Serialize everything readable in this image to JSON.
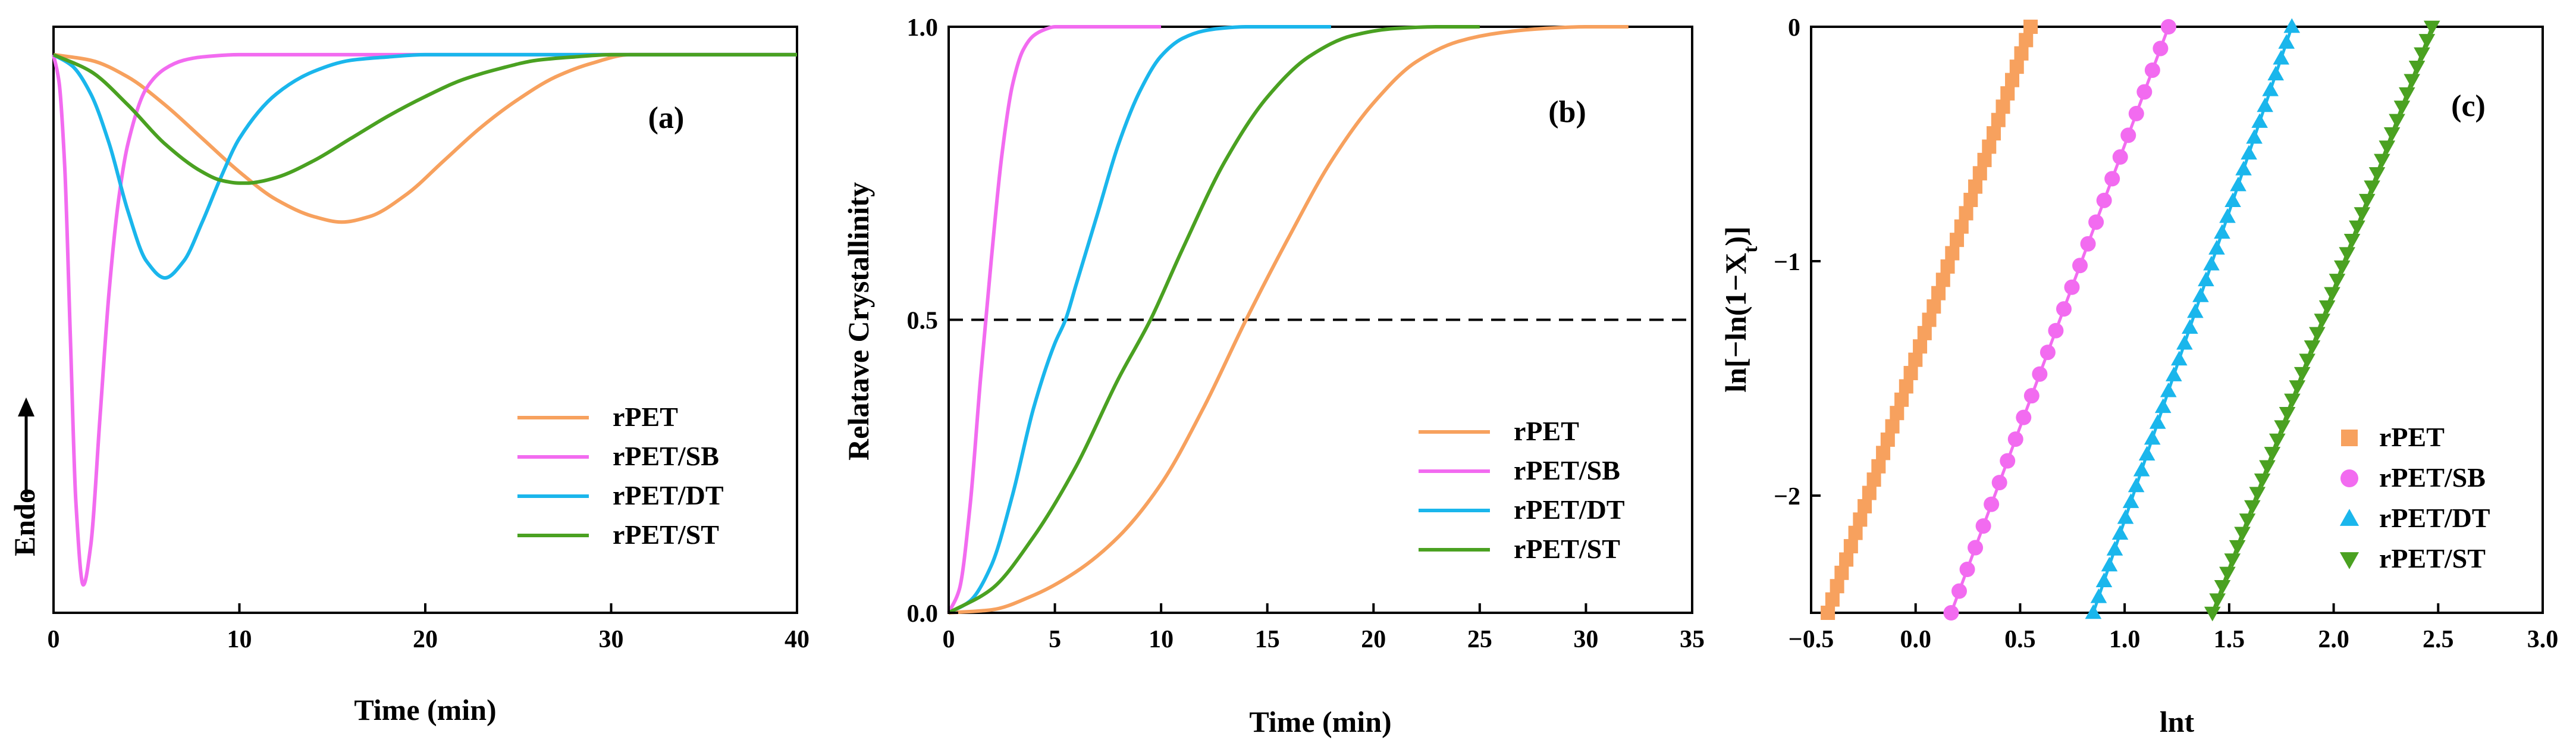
{
  "figure": {
    "panels": [
      {
        "id": "a",
        "letter": "(a)",
        "type": "line",
        "xlabel": "Time (min)",
        "ylabel": "Endo",
        "xlim": [
          0,
          40
        ],
        "xticks": [
          0,
          10,
          20,
          30,
          40
        ],
        "ylim": [
          -1.0,
          0.05
        ],
        "yticks": [],
        "legend": [
          "rPET",
          "rPET/SB",
          "rPET/DT",
          "rPET/ST"
        ]
      },
      {
        "id": "b",
        "letter": "(b)",
        "type": "line",
        "xlabel": "Time (min)",
        "ylabel": "Relatave Crystallinity",
        "xlim": [
          0,
          35
        ],
        "xticks": [
          0,
          5,
          10,
          15,
          20,
          25,
          30,
          35
        ],
        "ylim": [
          0,
          1
        ],
        "yticks": [
          0.0,
          0.5,
          1.0
        ],
        "ytick_labels": [
          "0.0",
          "0.5",
          "1.0"
        ],
        "reference_line_y": 0.5,
        "legend": [
          "rPET",
          "rPET/SB",
          "rPET/DT",
          "rPET/ST"
        ]
      },
      {
        "id": "c",
        "letter": "(c)",
        "type": "scatter",
        "xlabel": "lnt",
        "ylabel": "ln[−ln(1−Xt)]",
        "ylabel_parts": [
          "ln[−ln(1−X",
          "t",
          ")]"
        ],
        "xlim": [
          -0.5,
          3.0
        ],
        "xticks": [
          -0.5,
          0.0,
          0.5,
          1.0,
          1.5,
          2.0,
          2.5,
          3.0
        ],
        "xtick_labels": [
          "−0.5",
          "0.0",
          "0.5",
          "1.0",
          "1.5",
          "2.0",
          "2.5",
          "3.0"
        ],
        "ylim": [
          -2.5,
          0
        ],
        "yticks": [
          -2,
          -1,
          0
        ],
        "ytick_labels": [
          "−2",
          "−1",
          "0"
        ],
        "legend": [
          "rPET",
          "rPET/SB",
          "rPET/DT",
          "rPET/ST"
        ]
      }
    ]
  },
  "chart_data": [
    {
      "type": "line",
      "panel": "a",
      "title": "",
      "xlabel": "Time (min)",
      "ylabel": "Endo",
      "xlim": [
        0,
        40
      ],
      "series": [
        {
          "name": "rPET",
          "color": "#f7a15e",
          "x": [
            0,
            2,
            4,
            6,
            8,
            10,
            12,
            14,
            15.5,
            17,
            19,
            21,
            23,
            25,
            27,
            29,
            31,
            35,
            40
          ],
          "y": [
            0,
            -0.01,
            -0.04,
            -0.09,
            -0.15,
            -0.21,
            -0.26,
            -0.29,
            -0.3,
            -0.29,
            -0.25,
            -0.19,
            -0.13,
            -0.08,
            -0.04,
            -0.015,
            0,
            0,
            0
          ]
        },
        {
          "name": "rPET/SB",
          "color": "#f26bf0",
          "x": [
            0,
            0.3,
            0.6,
            0.9,
            1.2,
            1.6,
            2.0,
            2.5,
            3.0,
            3.5,
            4.0,
            5.0,
            6.0,
            7.0,
            8.0,
            10,
            15,
            40
          ],
          "y": [
            0,
            -0.05,
            -0.2,
            -0.5,
            -0.8,
            -0.95,
            -0.88,
            -0.65,
            -0.42,
            -0.26,
            -0.16,
            -0.06,
            -0.025,
            -0.01,
            -0.004,
            0,
            0,
            0
          ]
        },
        {
          "name": "rPET/DT",
          "color": "#1ab6ec",
          "x": [
            0,
            1,
            2,
            3,
            4,
            5,
            6,
            7,
            8,
            9,
            10,
            12,
            14,
            16,
            18,
            20,
            25,
            40
          ],
          "y": [
            0,
            -0.02,
            -0.07,
            -0.16,
            -0.28,
            -0.37,
            -0.4,
            -0.37,
            -0.3,
            -0.22,
            -0.15,
            -0.07,
            -0.03,
            -0.01,
            -0.004,
            0,
            0,
            0
          ]
        },
        {
          "name": "rPET/ST",
          "color": "#4aa121",
          "x": [
            0,
            2,
            4,
            6,
            8,
            9,
            10,
            10.5,
            11,
            12,
            14,
            16,
            18,
            20,
            22,
            24,
            26,
            28,
            30,
            40
          ],
          "y": [
            0,
            -0.03,
            -0.09,
            -0.16,
            -0.21,
            -0.225,
            -0.23,
            -0.23,
            -0.228,
            -0.22,
            -0.19,
            -0.15,
            -0.11,
            -0.075,
            -0.045,
            -0.025,
            -0.01,
            -0.004,
            0,
            0
          ]
        }
      ]
    },
    {
      "type": "line",
      "panel": "b",
      "title": "",
      "xlabel": "Time (min)",
      "ylabel": "Relatave Crystallinity",
      "xlim": [
        0,
        35
      ],
      "ylim": [
        0,
        1
      ],
      "series": [
        {
          "name": "rPET",
          "color": "#f7a15e",
          "x": [
            0,
            2,
            4,
            6,
            8,
            10,
            12,
            14,
            16,
            18,
            20,
            22,
            24,
            26,
            28,
            30,
            32
          ],
          "y": [
            0,
            0.005,
            0.03,
            0.07,
            0.13,
            0.22,
            0.35,
            0.5,
            0.64,
            0.77,
            0.87,
            0.94,
            0.975,
            0.99,
            0.997,
            1.0,
            1.0
          ]
        },
        {
          "name": "rPET/SB",
          "color": "#f26bf0",
          "x": [
            0,
            0.5,
            1,
            1.5,
            2,
            2.5,
            3,
            3.5,
            4,
            4.5,
            5,
            6,
            8,
            10
          ],
          "y": [
            0,
            0.04,
            0.18,
            0.4,
            0.6,
            0.78,
            0.9,
            0.96,
            0.985,
            0.995,
            1.0,
            1.0,
            1.0,
            1.0
          ]
        },
        {
          "name": "rPET/DT",
          "color": "#1ab6ec",
          "x": [
            0,
            1,
            2,
            3,
            4,
            5,
            5.5,
            6,
            7,
            8,
            9,
            10,
            11,
            12,
            13,
            14,
            16,
            18
          ],
          "y": [
            0,
            0.02,
            0.08,
            0.2,
            0.35,
            0.46,
            0.5,
            0.56,
            0.68,
            0.8,
            0.89,
            0.95,
            0.98,
            0.993,
            0.998,
            1.0,
            1.0,
            1.0
          ]
        },
        {
          "name": "rPET/ST",
          "color": "#4aa121",
          "x": [
            0,
            2,
            4,
            6,
            8,
            9.5,
            11,
            13,
            15,
            17,
            19,
            21,
            23,
            25
          ],
          "y": [
            0,
            0.04,
            0.13,
            0.25,
            0.4,
            0.5,
            0.62,
            0.77,
            0.88,
            0.95,
            0.985,
            0.997,
            1.0,
            1.0
          ]
        }
      ]
    },
    {
      "type": "scatter",
      "panel": "c",
      "title": "",
      "xlabel": "lnt",
      "ylabel": "ln[−ln(1−Xt)]",
      "xlim": [
        -0.5,
        3.0
      ],
      "ylim": [
        -2.5,
        0
      ],
      "series": [
        {
          "name": "rPET",
          "color": "#f7a15e",
          "marker": "square",
          "x_range": [
            -0.42,
            0.55
          ],
          "y_range": [
            -2.5,
            0
          ],
          "points": 45
        },
        {
          "name": "rPET/SB",
          "color": "#f26bf0",
          "marker": "circle",
          "x_range": [
            0.17,
            1.21
          ],
          "y_range": [
            -2.5,
            0
          ],
          "points": 28
        },
        {
          "name": "rPET/DT",
          "color": "#1ab6ec",
          "marker": "triangle-up",
          "x_range": [
            0.85,
            1.8
          ],
          "y_range": [
            -2.5,
            0
          ],
          "points": 38
        },
        {
          "name": "rPET/ST",
          "color": "#4aa121",
          "marker": "triangle-down",
          "x_range": [
            1.42,
            2.47
          ],
          "y_range": [
            -2.5,
            0
          ],
          "points": 45
        }
      ]
    }
  ]
}
